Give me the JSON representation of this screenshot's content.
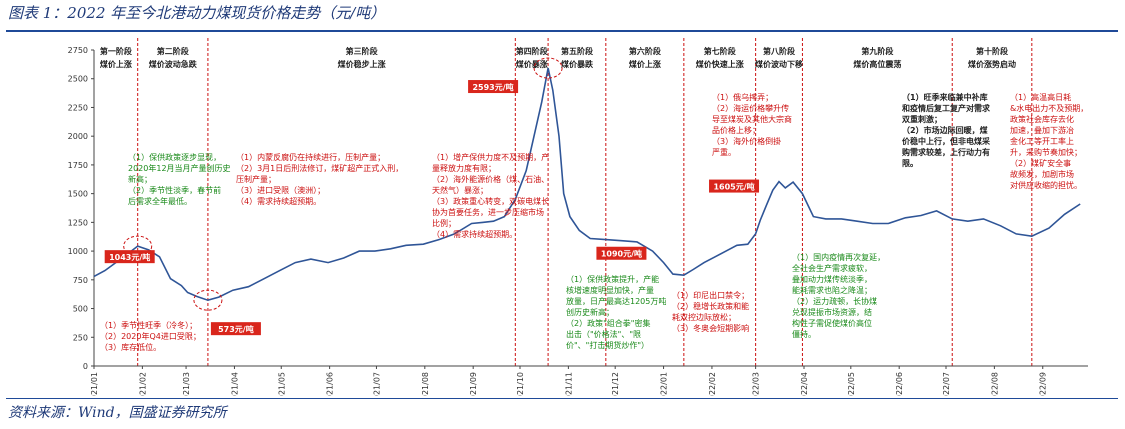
{
  "figure": {
    "title": "图表 1：2022 年至今北港动力煤现货价格走势（元/吨）",
    "source": "资料来源：Wind，国盛证券研究所"
  },
  "colors": {
    "line": "#2f5597",
    "red": "#cc1111",
    "green": "#1a8a1a",
    "box": "#d9261c",
    "rule": "#1f4a98"
  },
  "chart_data": {
    "type": "line",
    "title": "",
    "xlabel": "",
    "ylabel": "",
    "ylim": [
      0,
      2750
    ],
    "yticks": [
      0,
      250,
      500,
      750,
      1000,
      1250,
      1500,
      1750,
      2000,
      2250,
      2500,
      2750
    ],
    "xlim": [
      "2021-01-01",
      "2022-09-30"
    ],
    "xticks": [
      "2021/01",
      "2021/02",
      "2021/03",
      "2021/04",
      "2021/05",
      "2021/06",
      "2021/07",
      "2021/08",
      "2021/09",
      "2021/10",
      "2021/11",
      "2021/12",
      "2022/01",
      "2022/02",
      "2022/03",
      "2022/04",
      "2022/05",
      "2022/06",
      "2022/07",
      "2022/08",
      "2022/09"
    ],
    "grid": false,
    "series": [
      {
        "name": "",
        "x": [
          "2021-01-01",
          "2021-01-08",
          "2021-01-15",
          "2021-01-22",
          "2021-01-29",
          "2021-02-05",
          "2021-02-12",
          "2021-02-19",
          "2021-02-26",
          "2021-03-02",
          "2021-03-08",
          "2021-03-15",
          "2021-03-22",
          "2021-03-31",
          "2021-04-10",
          "2021-04-20",
          "2021-04-30",
          "2021-05-10",
          "2021-05-20",
          "2021-05-31",
          "2021-06-10",
          "2021-06-20",
          "2021-06-30",
          "2021-07-10",
          "2021-07-20",
          "2021-07-31",
          "2021-08-10",
          "2021-08-20",
          "2021-08-31",
          "2021-09-07",
          "2021-09-14",
          "2021-09-21",
          "2021-09-28",
          "2021-10-05",
          "2021-10-10",
          "2021-10-15",
          "2021-10-19",
          "2021-10-22",
          "2021-10-26",
          "2021-10-29",
          "2021-11-02",
          "2021-11-08",
          "2021-11-15",
          "2021-11-25",
          "2021-12-05",
          "2021-12-15",
          "2021-12-25",
          "2022-01-01",
          "2022-01-07",
          "2022-01-14",
          "2022-01-20",
          "2022-01-27",
          "2022-02-03",
          "2022-02-10",
          "2022-02-17",
          "2022-02-24",
          "2022-03-01",
          "2022-03-04",
          "2022-03-08",
          "2022-03-12",
          "2022-03-16",
          "2022-03-20",
          "2022-03-25",
          "2022-03-31",
          "2022-04-07",
          "2022-04-15",
          "2022-04-25",
          "2022-05-05",
          "2022-05-15",
          "2022-05-25",
          "2022-06-05",
          "2022-06-15",
          "2022-06-25",
          "2022-07-05",
          "2022-07-15",
          "2022-07-25",
          "2022-08-05",
          "2022-08-15",
          "2022-08-25",
          "2022-09-05",
          "2022-09-15",
          "2022-09-25"
        ],
        "values": [
          780,
          830,
          900,
          970,
          1043,
          1010,
          950,
          760,
          700,
          640,
          605,
          573,
          600,
          660,
          690,
          760,
          830,
          900,
          930,
          900,
          940,
          1000,
          1000,
          1020,
          1050,
          1060,
          1100,
          1150,
          1240,
          1250,
          1260,
          1300,
          1450,
          1700,
          2000,
          2300,
          2593,
          2400,
          2000,
          1500,
          1300,
          1180,
          1110,
          1100,
          1090,
          1080,
          1000,
          900,
          800,
          790,
          840,
          900,
          950,
          1000,
          1050,
          1060,
          1150,
          1270,
          1400,
          1530,
          1605,
          1550,
          1600,
          1500,
          1300,
          1280,
          1280,
          1260,
          1240,
          1240,
          1290,
          1310,
          1350,
          1280,
          1260,
          1280,
          1220,
          1150,
          1130,
          1200,
          1320,
          1410
        ]
      }
    ],
    "value_labels": [
      "1043元/吨",
      "573元/吨",
      "2593元/吨",
      "1090元/吨",
      "1605元/吨"
    ],
    "stages": [
      {
        "name": "第一阶段",
        "desc": "煤价上涨"
      },
      {
        "name": "第二阶段",
        "desc": "煤价波动急跌"
      },
      {
        "name": "第三阶段",
        "desc": "煤价稳步上涨"
      },
      {
        "name": "第四阶段",
        "desc": "煤价暴涨"
      },
      {
        "name": "第五阶段",
        "desc": "煤价暴跌"
      },
      {
        "name": "第六阶段",
        "desc": "煤价上涨"
      },
      {
        "name": "第七阶段",
        "desc": "煤价快速上涨"
      },
      {
        "name": "第八阶段",
        "desc": "煤价波动下移"
      },
      {
        "name": "第九阶段",
        "desc": "煤价高位震荡"
      },
      {
        "name": "第十阶段",
        "desc": "煤价涨势启动"
      }
    ],
    "annotations": [
      {
        "color": "red",
        "lines": [
          "（1）季节性旺季（冷冬）；",
          "（2）2020年Q4进口受限；",
          "（3）库存低位。"
        ]
      },
      {
        "color": "green",
        "lines": [
          "（1）保供政策逐步显现，",
          "2020年12月当月产量创历史",
          "新高；",
          "（2）季节性淡季，春节前",
          "后需求全年最低。"
        ]
      },
      {
        "color": "red",
        "lines": [
          "（1）内蒙反腐仍在持续进行，压制产量；",
          "（2）3月1日后刑法修订，煤矿超产正式入刑，",
          "压制产量；",
          "（3）进口受限（澳洲）；",
          "（4）需求持续超预期。"
        ]
      },
      {
        "color": "red",
        "lines": [
          "（1）增产保供力度不及预期，产",
          "量释放力度有限；",
          "（2）海外能源价格（煤、石油、",
          "天然气）暴涨；",
          "（3）政策重心转变，双碳电煤长",
          "协为首要任务，进一步压缩市场",
          "比例；",
          "（4）需求持续超预期。"
        ]
      },
      {
        "color": "green",
        "lines": [
          "（1）保供政策提升，产能",
          "核增速度明显加快，产量",
          "放量，日产最高达1205万吨",
          "创历史新高；",
          "（2）政策\"组合拳\"密集",
          "出击（\"价格法\"、\"限",
          "价\"、\"打击期货炒作\"）"
        ]
      },
      {
        "color": "red",
        "lines": [
          "（1）印尼出口禁令；",
          "（2）稳增长政策和能",
          "耗双控边际放松；",
          "（3）冬奥会短期影响"
        ]
      },
      {
        "color": "red",
        "lines": [
          "（1）俄乌摔弄；",
          "（2）海运价格攀升传",
          "导至煤炭及其他大宗商",
          "品价格上移；",
          "（3）海外价格倒掛",
          "严重。"
        ]
      },
      {
        "color": "green",
        "lines": [
          "（1）国内疫情再次复延，",
          "全社会生产需求疲软，",
          "叠加动力煤传统淡季，",
          "能耗需求也陷之降温；",
          "（2）运力疏顿，长协煤",
          "兑现提振市场资源，结",
          "构性子需促使煤价高位",
          "僵持。"
        ]
      },
      {
        "color": "dark",
        "lines": [
          "（1）旺季来临兼中补库",
          "和疫情后复工复产对需求",
          "双重刺激；",
          "（2）市场边际回暖，煤",
          "价稳中上行，但非电煤采",
          "购需求较差，上行动力有",
          "限。"
        ]
      },
      {
        "color": "red",
        "lines": [
          "（1）高温高日耗",
          "&水电出力不及预期，",
          "政策社会库存去化",
          "加速，叠加下游冶",
          "金化工等开工率上",
          "升，采购节奏加快；",
          "（2）煤矿安全事",
          "故频发，加剧市场",
          "对供应收缩的担忧。"
        ]
      }
    ]
  }
}
